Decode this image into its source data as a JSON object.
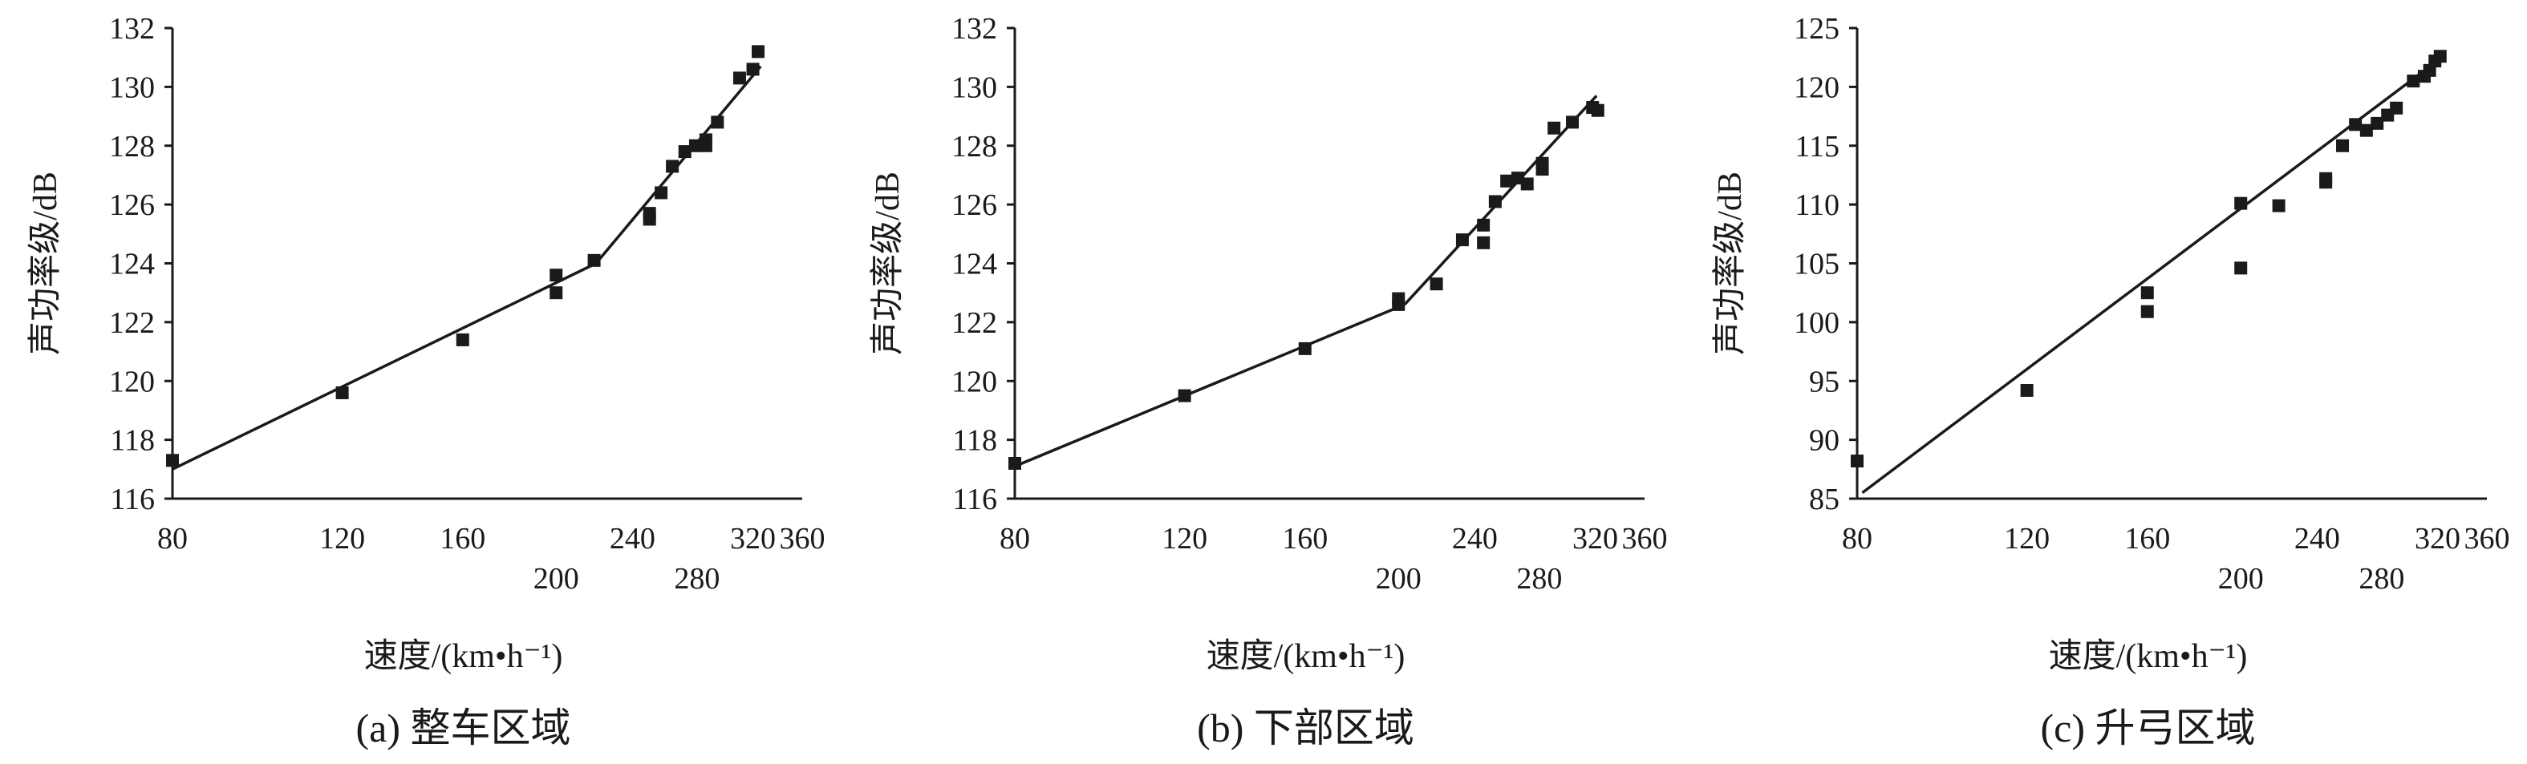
{
  "chart_data": [
    {
      "type": "scatter",
      "caption": "(a) 整车区域",
      "xlabel": "速度/(km•h⁻¹)",
      "ylabel": "声功率级/dB",
      "xscale": "log",
      "xlim": [
        80,
        360
      ],
      "ylim": [
        116,
        132
      ],
      "xticks": [
        80,
        120,
        160,
        200,
        240,
        280,
        320,
        360
      ],
      "yticks": [
        116,
        118,
        120,
        122,
        124,
        126,
        128,
        130,
        132
      ],
      "grid": false,
      "points": [
        {
          "x": 80,
          "y": 117.3
        },
        {
          "x": 120,
          "y": 119.6
        },
        {
          "x": 160,
          "y": 121.4
        },
        {
          "x": 200,
          "y": 123.6
        },
        {
          "x": 200,
          "y": 123.0
        },
        {
          "x": 219,
          "y": 124.1
        },
        {
          "x": 250,
          "y": 125.5
        },
        {
          "x": 250,
          "y": 125.7
        },
        {
          "x": 257,
          "y": 126.4
        },
        {
          "x": 264,
          "y": 127.3
        },
        {
          "x": 272,
          "y": 127.8
        },
        {
          "x": 279,
          "y": 128.0
        },
        {
          "x": 286,
          "y": 128.2
        },
        {
          "x": 286,
          "y": 128.0
        },
        {
          "x": 294,
          "y": 128.8
        },
        {
          "x": 310,
          "y": 130.3
        },
        {
          "x": 320,
          "y": 130.6
        },
        {
          "x": 324,
          "y": 131.2
        }
      ],
      "fit_lines": [
        {
          "x": [
            80,
            220
          ],
          "y": [
            117.0,
            124.0
          ]
        },
        {
          "x": [
            220,
            326
          ],
          "y": [
            124.0,
            130.7
          ]
        }
      ]
    },
    {
      "type": "scatter",
      "caption": "(b) 下部区域",
      "xlabel": "速度/(km•h⁻¹)",
      "ylabel": "声功率级/dB",
      "xscale": "log",
      "xlim": [
        80,
        360
      ],
      "ylim": [
        116,
        132
      ],
      "xticks": [
        80,
        120,
        160,
        200,
        240,
        280,
        320,
        360
      ],
      "yticks": [
        116,
        118,
        120,
        122,
        124,
        126,
        128,
        130,
        132
      ],
      "grid": false,
      "points": [
        {
          "x": 80,
          "y": 117.2
        },
        {
          "x": 120,
          "y": 119.5
        },
        {
          "x": 160,
          "y": 121.1
        },
        {
          "x": 200,
          "y": 122.8
        },
        {
          "x": 200,
          "y": 122.6
        },
        {
          "x": 219,
          "y": 123.3
        },
        {
          "x": 233,
          "y": 124.8
        },
        {
          "x": 245,
          "y": 124.7
        },
        {
          "x": 245,
          "y": 125.3
        },
        {
          "x": 252,
          "y": 126.1
        },
        {
          "x": 259,
          "y": 126.8
        },
        {
          "x": 266,
          "y": 126.9
        },
        {
          "x": 272,
          "y": 126.7
        },
        {
          "x": 282,
          "y": 127.2
        },
        {
          "x": 282,
          "y": 127.4
        },
        {
          "x": 290,
          "y": 128.6
        },
        {
          "x": 303,
          "y": 128.8
        },
        {
          "x": 318,
          "y": 129.3
        },
        {
          "x": 322,
          "y": 129.2
        }
      ],
      "fit_lines": [
        {
          "x": [
            80,
            203
          ],
          "y": [
            117.1,
            122.6
          ]
        },
        {
          "x": [
            203,
            321
          ],
          "y": [
            122.6,
            129.7
          ]
        }
      ]
    },
    {
      "type": "scatter",
      "caption": "(c) 升弓区域",
      "xlabel": "速度/(km•h⁻¹)",
      "ylabel": "声功率级/dB",
      "xscale": "log",
      "xlim": [
        80,
        360
      ],
      "ylim": [
        85,
        125
      ],
      "xticks": [
        80,
        120,
        160,
        200,
        240,
        280,
        320,
        360
      ],
      "yticks": [
        85,
        90,
        95,
        100,
        105,
        110,
        115,
        120,
        125
      ],
      "grid": false,
      "points": [
        {
          "x": 80,
          "y": 88.2
        },
        {
          "x": 120,
          "y": 94.2
        },
        {
          "x": 160,
          "y": 102.5
        },
        {
          "x": 160,
          "y": 100.9
        },
        {
          "x": 200,
          "y": 110.1
        },
        {
          "x": 200,
          "y": 104.6
        },
        {
          "x": 219,
          "y": 109.9
        },
        {
          "x": 245,
          "y": 112.2
        },
        {
          "x": 245,
          "y": 111.9
        },
        {
          "x": 255,
          "y": 115.0
        },
        {
          "x": 263,
          "y": 116.8
        },
        {
          "x": 270,
          "y": 116.3
        },
        {
          "x": 277,
          "y": 116.9
        },
        {
          "x": 284,
          "y": 117.6
        },
        {
          "x": 290,
          "y": 118.2
        },
        {
          "x": 302,
          "y": 120.5
        },
        {
          "x": 310,
          "y": 120.9
        },
        {
          "x": 314,
          "y": 121.4
        },
        {
          "x": 318,
          "y": 122.2
        },
        {
          "x": 322,
          "y": 122.6
        }
      ],
      "fit_lines": [
        {
          "x": [
            81,
            322
          ],
          "y": [
            85.5,
            122.4
          ]
        }
      ]
    }
  ],
  "colors": {
    "axis": "#1a1a1a",
    "marker": "#1a1a1a",
    "fit_line": "#1a1a1a"
  }
}
